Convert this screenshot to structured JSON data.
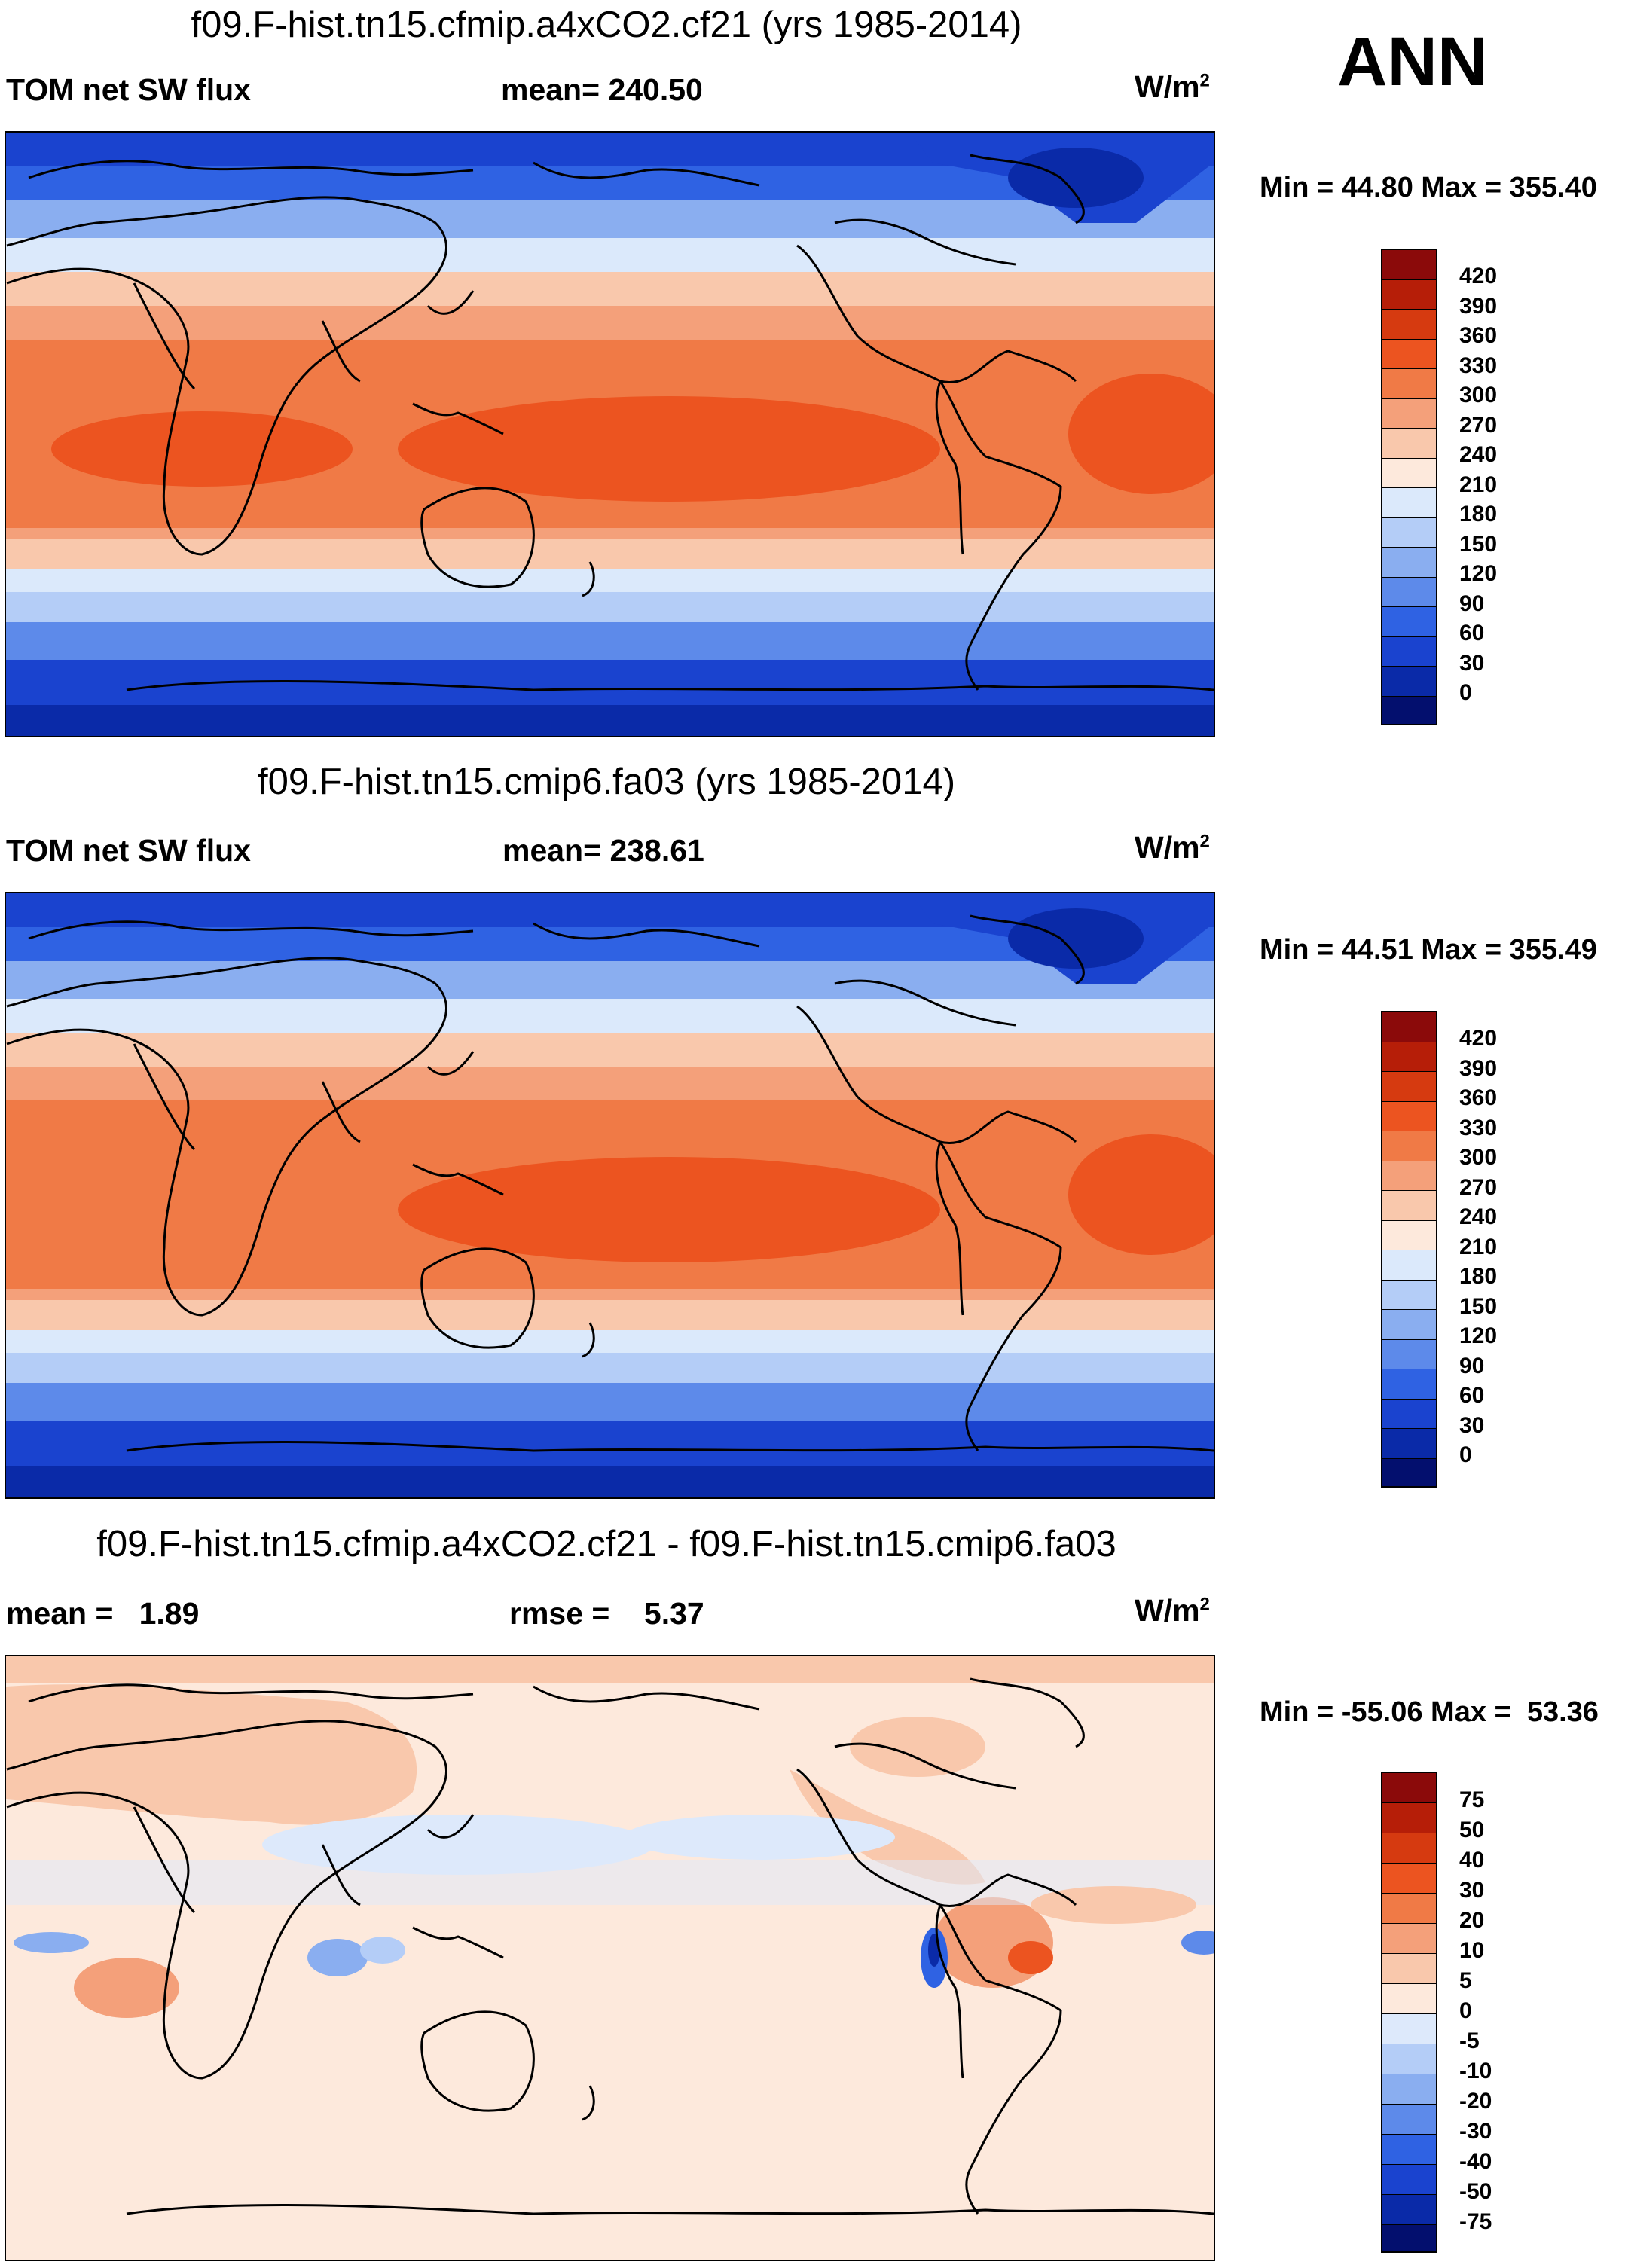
{
  "season": "ANN",
  "panels": [
    {
      "title": "f09.F-hist.tn15.cfmip.a4xCO2.cf21 (yrs 1985-2014)",
      "left_label": "TOM net SW flux",
      "center_label": "mean= 240.50",
      "units": "W/m",
      "units_exp": "2",
      "minmax": "Min =  44.80 Max = 355.40",
      "type": "field"
    },
    {
      "title": "f09.F-hist.tn15.cmip6.fa03 (yrs 1985-2014)",
      "left_label": "TOM net SW flux",
      "center_label": "mean= 238.61",
      "units": "W/m",
      "units_exp": "2",
      "minmax": "Min =  44.51 Max = 355.49",
      "type": "field"
    },
    {
      "title": "f09.F-hist.tn15.cfmip.a4xCO2.cf21 - f09.F-hist.tn15.cmip6.fa03",
      "left_label": "mean =   1.89",
      "center_label": "rmse =    5.37",
      "units": "W/m",
      "units_exp": "2",
      "minmax": "Min = -55.06 Max =  53.36",
      "type": "diff"
    }
  ],
  "colorbars": {
    "field": {
      "labels": [
        "420",
        "390",
        "360",
        "330",
        "300",
        "270",
        "240",
        "210",
        "180",
        "150",
        "120",
        "90",
        "60",
        "30",
        "0"
      ],
      "colors": [
        "#8b0a0a",
        "#b61e08",
        "#d63a10",
        "#ec5420",
        "#f07a46",
        "#f4a07a",
        "#f9c8ac",
        "#fde9dc",
        "#dbe9fb",
        "#b4cdf7",
        "#8aaef0",
        "#5d8aea",
        "#2f62e3",
        "#1a43cf",
        "#0a2aa8",
        "#030f6e"
      ]
    },
    "diff": {
      "labels": [
        "75",
        "50",
        "40",
        "30",
        "20",
        "10",
        "5",
        "0",
        "-5",
        "-10",
        "-20",
        "-30",
        "-40",
        "-50",
        "-75"
      ],
      "colors": [
        "#8b0a0a",
        "#b61e08",
        "#d63a10",
        "#ec5420",
        "#f07a46",
        "#f4a07a",
        "#f9c8ac",
        "#fde9dc",
        "#dde9fb",
        "#b4cdf7",
        "#8aaef0",
        "#5d8aea",
        "#2f62e3",
        "#1a43cf",
        "#0a2aa8",
        "#030f6e"
      ]
    }
  }
}
